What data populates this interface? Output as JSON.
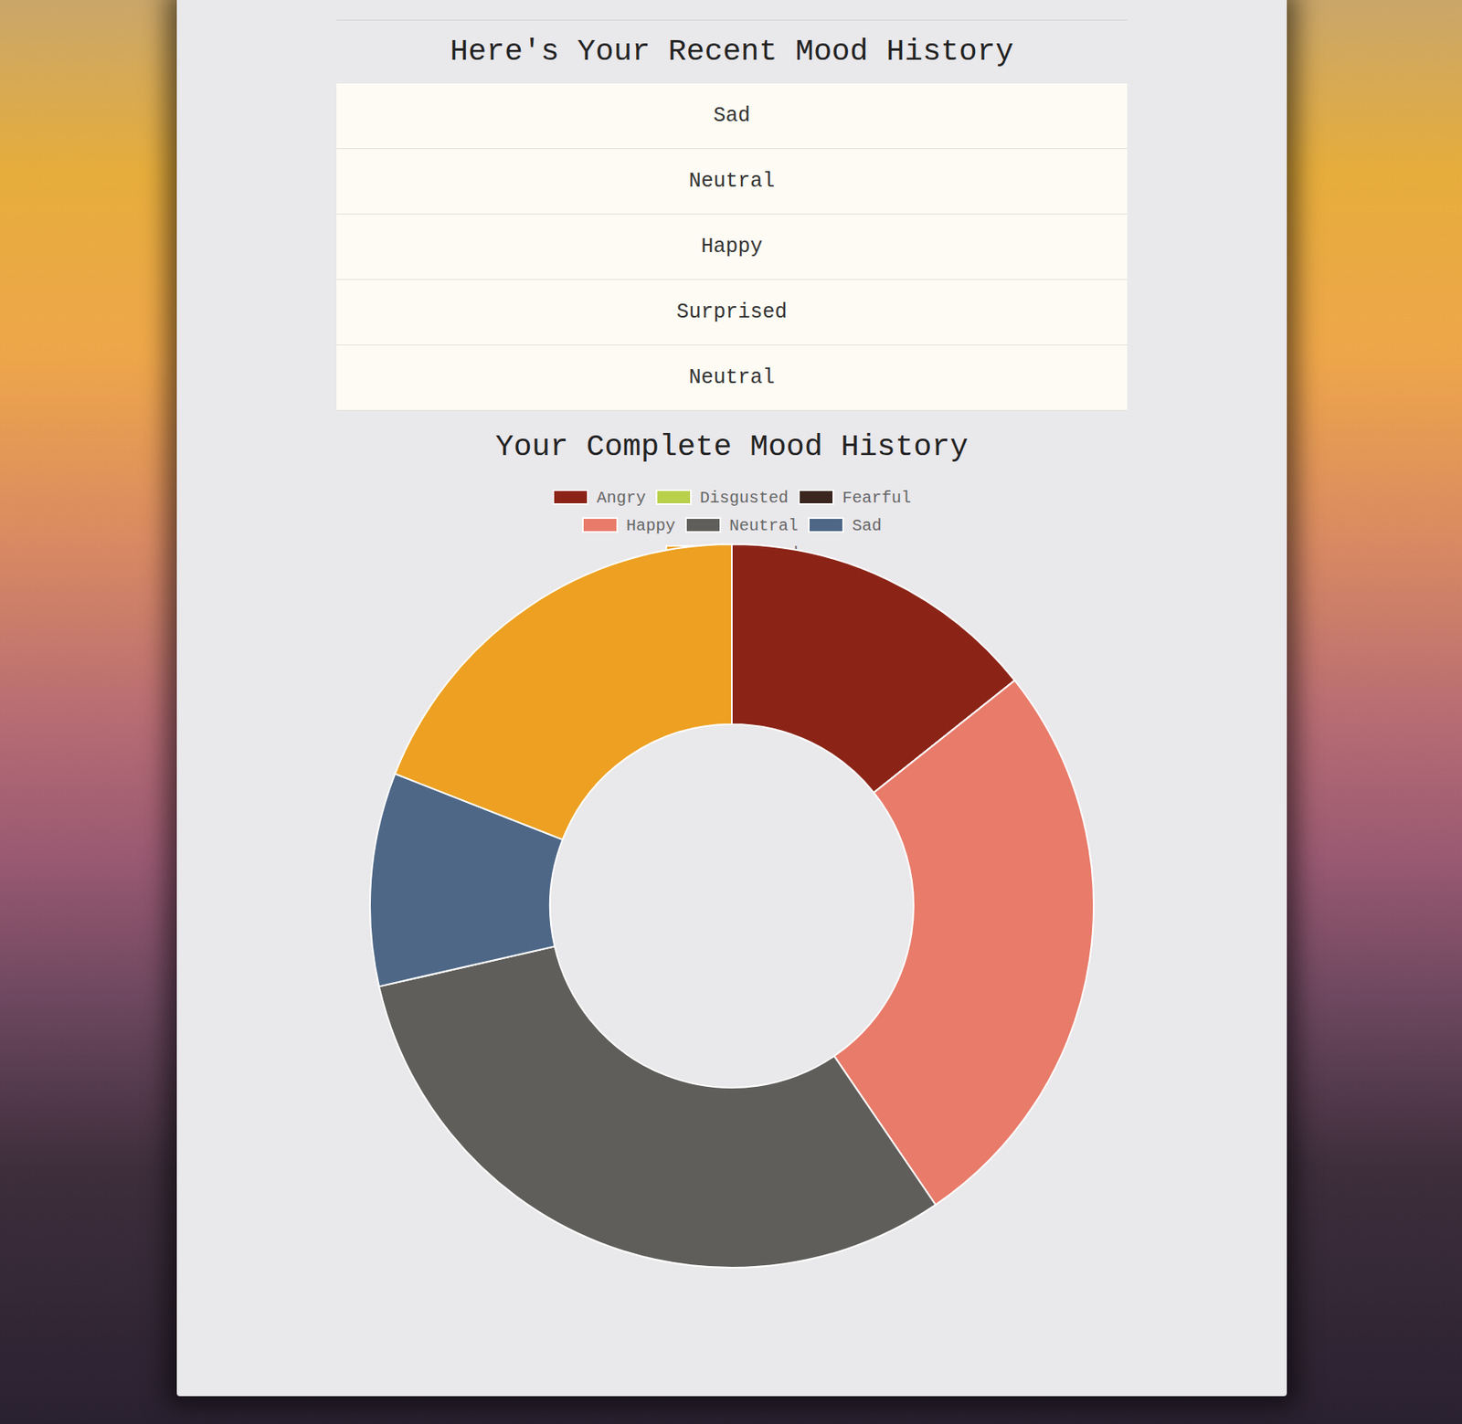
{
  "recent_mood_history": {
    "title": "Here's Your Recent Mood History",
    "rows": [
      "Sad",
      "Neutral",
      "Happy",
      "Surprised",
      "Neutral"
    ]
  },
  "chart_data": {
    "type": "donut",
    "title": "Your Complete Mood History",
    "categories": [
      "Angry",
      "Disgusted",
      "Fearful",
      "Happy",
      "Neutral",
      "Sad",
      "Surprised"
    ],
    "values": [
      6,
      0,
      0,
      11,
      13,
      4,
      8
    ],
    "colors": [
      "#8b2417",
      "#b8d04a",
      "#3a261e",
      "#e87b6a",
      "#5f5e5a",
      "#4e6787",
      "#eda021"
    ],
    "legend": "top"
  }
}
